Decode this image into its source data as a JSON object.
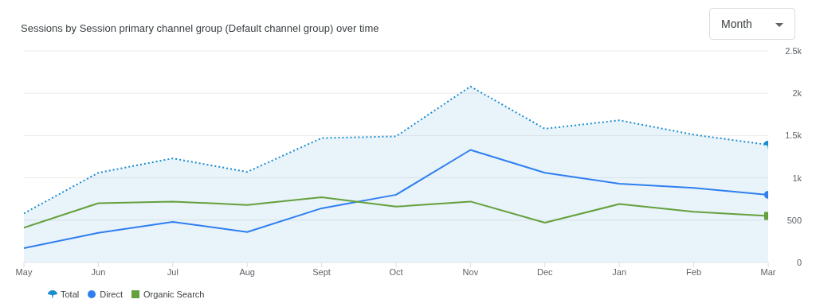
{
  "chart_data": {
    "type": "line",
    "title": "Sessions by Session primary channel group (Default channel group) over time",
    "categories": [
      "May",
      "Jun",
      "Jul",
      "Aug",
      "Sept",
      "Oct",
      "Nov",
      "Dec",
      "Jan",
      "Feb",
      "Mar"
    ],
    "series": [
      {
        "name": "Total",
        "type": "area",
        "color": "#1a8ccf",
        "line_style": "dotted",
        "values": [
          580,
          1060,
          1230,
          1070,
          1470,
          1490,
          2080,
          1580,
          1680,
          1510,
          1390
        ]
      },
      {
        "name": "Direct",
        "color": "#2f7ff0",
        "line_style": "solid",
        "values": [
          170,
          350,
          480,
          360,
          640,
          800,
          1330,
          1060,
          930,
          880,
          800
        ]
      },
      {
        "name": "Organic Search",
        "color": "#64a03c",
        "line_style": "solid",
        "values": [
          410,
          700,
          720,
          680,
          770,
          660,
          720,
          470,
          690,
          600,
          550
        ]
      }
    ],
    "ylim": [
      0,
      2500
    ],
    "yticks": [
      0,
      {
        "value": 500,
        "label": "500"
      },
      {
        "value": 1000,
        "label": "1k"
      },
      {
        "value": 1500,
        "label": "1.5k"
      },
      {
        "value": 2000,
        "label": "2k"
      },
      {
        "value": 2500,
        "label": "2.5k"
      }
    ],
    "grid": "y",
    "legend": "bottom left",
    "annotations": [
      "Month"
    ]
  }
}
